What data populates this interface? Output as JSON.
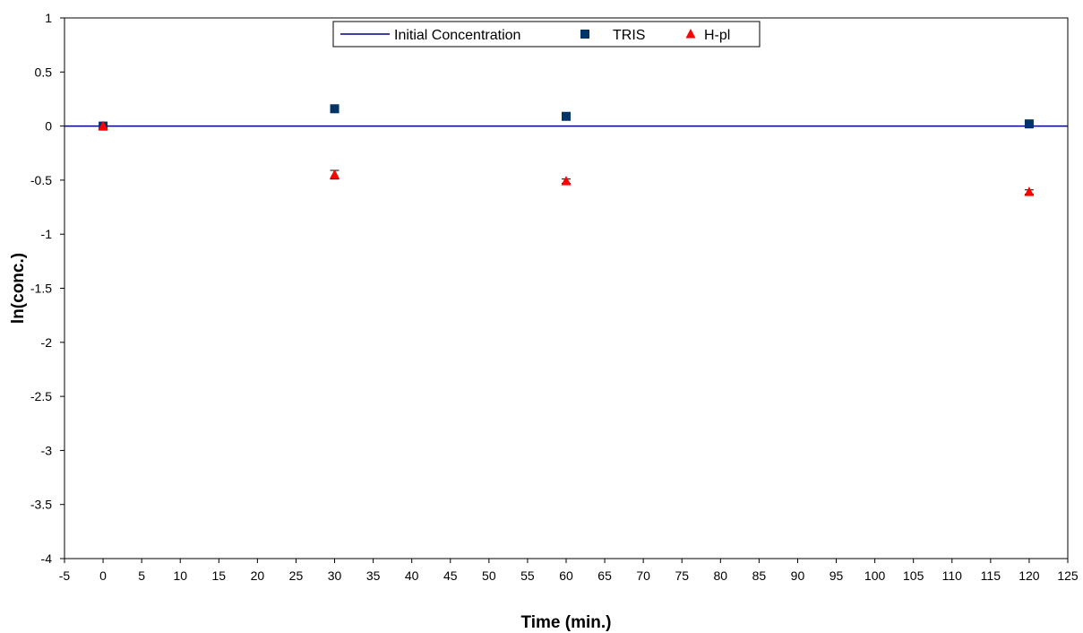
{
  "chart_data": {
    "type": "scatter",
    "title": "",
    "xlabel": "Time (min.)",
    "ylabel": "ln(conc.)",
    "xlim": [
      -5,
      125
    ],
    "ylim": [
      -4,
      1
    ],
    "xticks": [
      -5,
      0,
      5,
      10,
      15,
      20,
      25,
      30,
      35,
      40,
      45,
      50,
      55,
      60,
      65,
      70,
      75,
      80,
      85,
      90,
      95,
      100,
      105,
      110,
      115,
      120,
      125
    ],
    "yticks": [
      1,
      0.5,
      0,
      -0.5,
      -1,
      -1.5,
      -2,
      -2.5,
      -3,
      -3.5,
      -4
    ],
    "grid": false,
    "legend_position": "top-center",
    "series": [
      {
        "name": "Initial Concentration",
        "kind": "line",
        "color": "#000080",
        "x": [
          -5,
          125
        ],
        "y": [
          0,
          0
        ]
      },
      {
        "name": "TRIS",
        "kind": "scatter",
        "marker": "square",
        "color": "#003366",
        "x": [
          0,
          30,
          60,
          120
        ],
        "y": [
          0.0,
          0.16,
          0.09,
          0.02
        ]
      },
      {
        "name": "H-pl",
        "kind": "scatter",
        "marker": "triangle",
        "color": "#ff0000",
        "x": [
          0,
          30,
          60,
          120
        ],
        "y": [
          0.0,
          -0.45,
          -0.51,
          -0.61
        ],
        "error": [
          0.0,
          0.04,
          0.02,
          0.02
        ]
      }
    ]
  }
}
